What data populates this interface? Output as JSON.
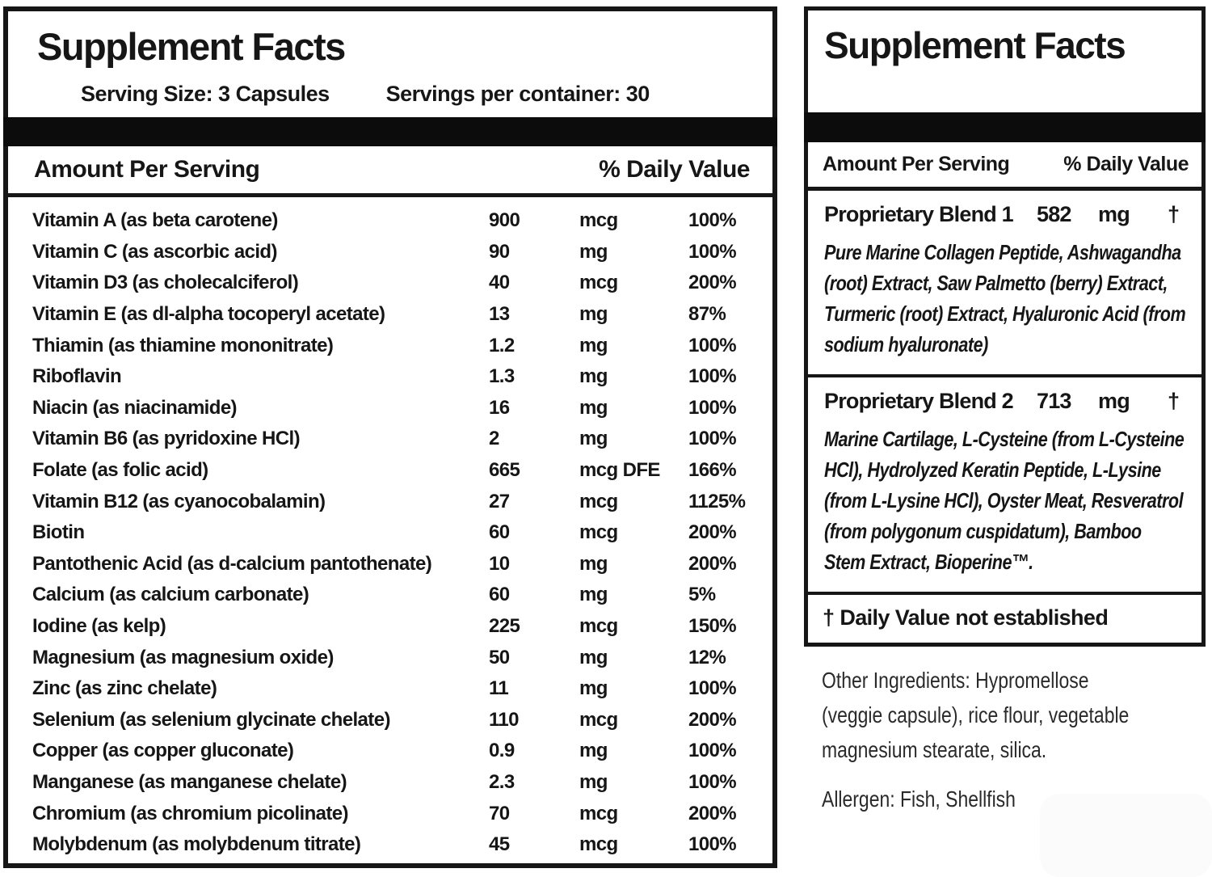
{
  "left_panel": {
    "title": "Supplement Facts",
    "serving_size": "Serving Size: 3 Capsules",
    "servings_per_container": "Servings per container: 30",
    "header": {
      "amount": "Amount Per Serving",
      "daily_value": "% Daily Value"
    },
    "rows": [
      {
        "name": "Vitamin A (as beta carotene)",
        "amount": "900",
        "unit": "mcg",
        "dv": "100%"
      },
      {
        "name": "Vitamin C (as ascorbic acid)",
        "amount": "90",
        "unit": "mg",
        "dv": "100%"
      },
      {
        "name": "Vitamin D3 (as cholecalciferol)",
        "amount": "40",
        "unit": "mcg",
        "dv": "200%"
      },
      {
        "name": "Vitamin E (as dl-alpha tocoperyl acetate)",
        "amount": "13",
        "unit": "mg",
        "dv": "87%"
      },
      {
        "name": "Thiamin (as thiamine mononitrate)",
        "amount": "1.2",
        "unit": "mg",
        "dv": "100%"
      },
      {
        "name": "Riboflavin",
        "amount": "1.3",
        "unit": "mg",
        "dv": "100%"
      },
      {
        "name": "Niacin (as niacinamide)",
        "amount": "16",
        "unit": "mg",
        "dv": "100%"
      },
      {
        "name": "Vitamin B6 (as pyridoxine HCl)",
        "amount": "2",
        "unit": "mg",
        "dv": "100%"
      },
      {
        "name": "Folate (as folic acid)",
        "amount": "665",
        "unit": "mcg DFE",
        "dv": "166%"
      },
      {
        "name": "Vitamin B12 (as cyanocobalamin)",
        "amount": "27",
        "unit": "mcg",
        "dv": "1125%"
      },
      {
        "name": "Biotin",
        "amount": "60",
        "unit": "mcg",
        "dv": "200%"
      },
      {
        "name": "Pantothenic Acid (as d-calcium pantothenate)",
        "amount": "10",
        "unit": "mg",
        "dv": "200%"
      },
      {
        "name": "Calcium (as calcium carbonate)",
        "amount": "60",
        "unit": "mg",
        "dv": "5%"
      },
      {
        "name": "Iodine (as kelp)",
        "amount": "225",
        "unit": "mcg",
        "dv": "150%"
      },
      {
        "name": "Magnesium (as magnesium oxide)",
        "amount": "50",
        "unit": "mg",
        "dv": "12%"
      },
      {
        "name": "Zinc (as zinc chelate)",
        "amount": "11",
        "unit": "mg",
        "dv": "100%"
      },
      {
        "name": "Selenium (as selenium glycinate chelate)",
        "amount": "110",
        "unit": "mcg",
        "dv": "200%"
      },
      {
        "name": "Copper (as copper gluconate)",
        "amount": "0.9",
        "unit": "mg",
        "dv": "100%"
      },
      {
        "name": "Manganese (as manganese chelate)",
        "amount": "2.3",
        "unit": "mg",
        "dv": "100%"
      },
      {
        "name": "Chromium (as chromium picolinate)",
        "amount": "70",
        "unit": "mcg",
        "dv": "200%"
      },
      {
        "name": "Molybdenum (as molybdenum titrate)",
        "amount": "45",
        "unit": "mcg",
        "dv": "100%"
      }
    ]
  },
  "right_panel": {
    "title": "Supplement Facts",
    "header": {
      "amount": "Amount Per Serving",
      "daily_value": "% Daily Value"
    },
    "blends": [
      {
        "name": "Proprietary Blend 1",
        "amount": "582",
        "unit": "mg",
        "dv": "†",
        "description": "Pure Marine Collagen Peptide, Ashwagandha (root) Extract, Saw Palmetto (berry) Extract, Turmeric (root) Extract, Hyaluronic Acid (from sodium hyaluronate)"
      },
      {
        "name": "Proprietary Blend 2",
        "amount": "713",
        "unit": "mg",
        "dv": "†",
        "description": "Marine Cartilage, L-Cysteine (from L-Cysteine HCl), Hydrolyzed Keratin Peptide, L-Lysine (from L-Lysine HCl), Oyster Meat, Resveratrol (from polygonum cuspidatum), Bamboo Stem Extract, Bioperine™."
      }
    ],
    "footnote": "† Daily Value not established",
    "other_ingredients_lines": [
      "Other Ingredients: Hypromellose",
      "(veggie capsule), rice flour, vegetable",
      "magnesium stearate, silica."
    ],
    "allergen": "Allergen: Fish, Shellfish"
  },
  "colors": {
    "text": "#161616",
    "bar": "#0c0c0c",
    "border": "#161616",
    "background": "#ffffff"
  }
}
